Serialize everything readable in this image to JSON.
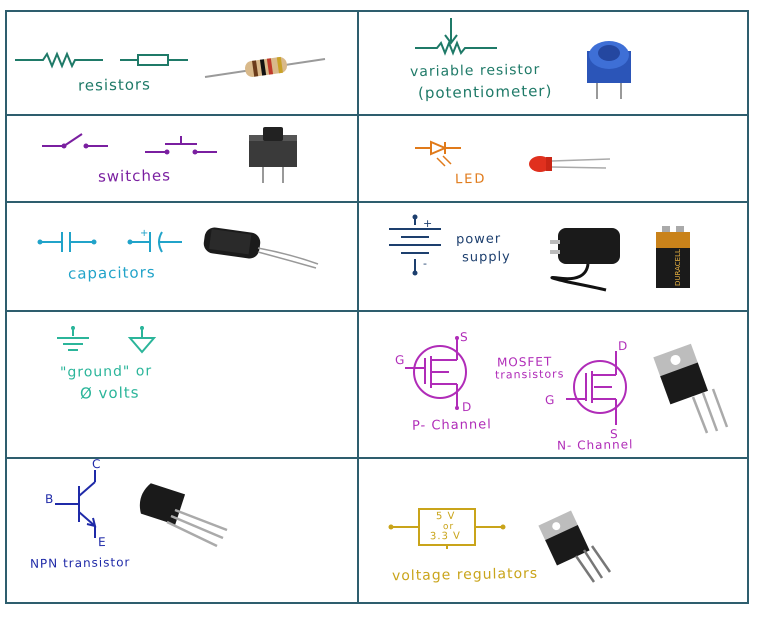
{
  "colors": {
    "grid": "#2e5e6e",
    "resistor": "#1f7a68",
    "switch": "#7a1fa0",
    "led": "#e07a1a",
    "capacitor": "#21a3c9",
    "power": "#1d3f6e",
    "ground": "#2bb59a",
    "mosfet": "#b02cb8",
    "npn": "#1f2aa8",
    "regulator": "#c9a41a"
  },
  "cells": {
    "resistors": {
      "label": "resistors"
    },
    "potentiometer": {
      "label_line1": "variable resistor",
      "label_line2": "(potentiometer)"
    },
    "switches": {
      "label": "switches"
    },
    "led": {
      "label": "LED"
    },
    "capacitors": {
      "label": "capacitors"
    },
    "power": {
      "label_line1": "power",
      "label_line2": "supply"
    },
    "ground": {
      "label_line1": "\"ground\" or",
      "label_line2": "Ø volts"
    },
    "mosfet": {
      "title_line1": "MOSFET",
      "title_line2": "transistors",
      "p_label": "P- Channel",
      "n_label": "N- Channel",
      "g": "G",
      "s": "S",
      "d": "D"
    },
    "npn": {
      "label": "NPN transistor",
      "b": "B",
      "c": "C",
      "e": "E"
    },
    "regulator": {
      "label": "voltage regulators",
      "box_line1": "5 V",
      "box_line2": "or",
      "box_line3": "3.3 V"
    },
    "battery": {
      "brand": "DURACELL"
    }
  }
}
